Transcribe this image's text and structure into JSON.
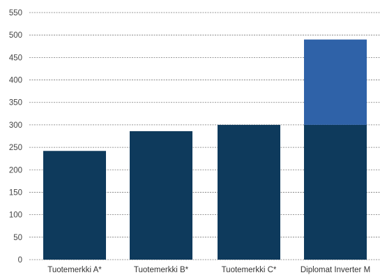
{
  "chart_data": {
    "type": "bar",
    "stacked": true,
    "categories": [
      "Tuotemerkki A*",
      "Tuotemerkki B*",
      "Tuotemerkki C*",
      "Diplomat Inverter M"
    ],
    "series": [
      {
        "values": [
          242,
          286,
          300,
          300
        ],
        "color": "#0e3a5c"
      },
      {
        "values": [
          0,
          0,
          0,
          190
        ],
        "color": "#2f62a8"
      }
    ],
    "y_ticks": [
      0,
      50,
      100,
      150,
      200,
      250,
      300,
      350,
      400,
      450,
      500,
      550
    ],
    "ylim": [
      0,
      550
    ],
    "grid": true,
    "legend": "none",
    "title": "",
    "xlabel": "",
    "ylabel": ""
  }
}
